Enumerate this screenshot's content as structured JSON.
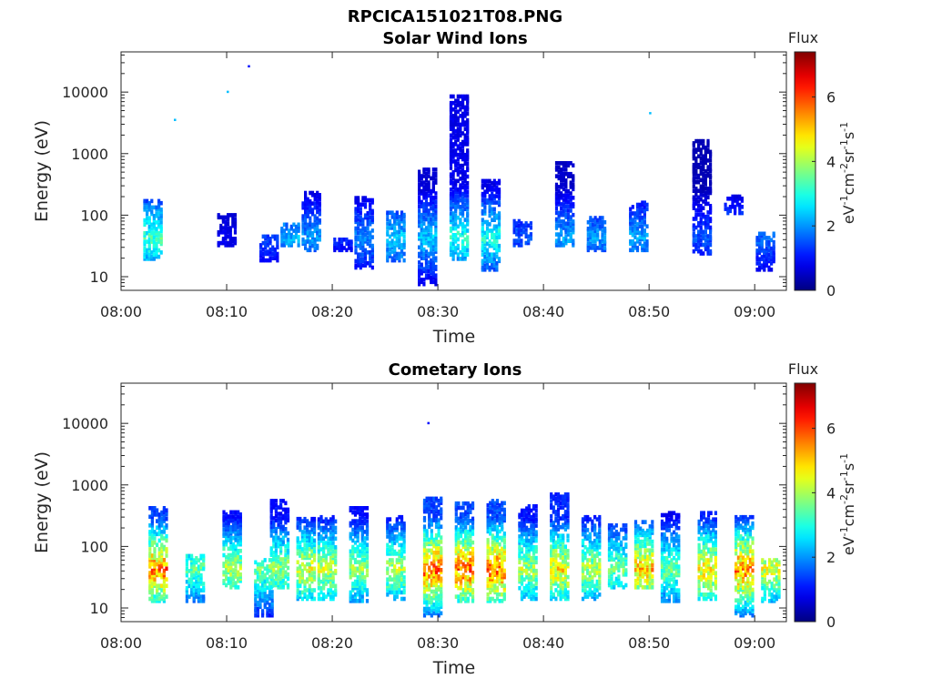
{
  "figure_title": "RPCICA151021T08.PNG",
  "chart_data": [
    {
      "type": "heatmap",
      "title": "Solar Wind Ions",
      "xlabel": "Time",
      "ylabel": "Energy (eV)",
      "x_range": [
        "08:00",
        "09:03"
      ],
      "y_scale": "log",
      "y_range": [
        6,
        45000
      ],
      "x_ticks": [
        "08:00",
        "08:10",
        "08:20",
        "08:30",
        "08:40",
        "08:50",
        "09:00"
      ],
      "y_ticks": [
        "10",
        "100",
        "1000",
        "10000"
      ],
      "colorbar": {
        "title": "Flux",
        "label": "eV-1cm-2sr-1s-1",
        "label_parts": [
          "eV",
          "-1",
          "cm",
          "-2",
          "sr",
          "-1",
          "s",
          "-1"
        ],
        "range": [
          0,
          7.4
        ],
        "ticks": [
          "0",
          "2",
          "4",
          "6"
        ],
        "colormap": "jet"
      },
      "clusters": [
        {
          "time": "08:03",
          "e_min": 18,
          "e_max": 170,
          "flux": 3.8
        },
        {
          "time": "08:05",
          "e_min": 3500,
          "e_max": 3500,
          "flux": 2.3
        },
        {
          "time": "08:10",
          "e_min": 30,
          "e_max": 100,
          "flux": 1.0
        },
        {
          "time": "08:10",
          "e_min": 10000,
          "e_max": 10000,
          "flux": 2.3
        },
        {
          "time": "08:12",
          "e_min": 26000,
          "e_max": 26000,
          "flux": 1.0
        },
        {
          "time": "08:14",
          "e_min": 17,
          "e_max": 45,
          "flux": 1.6
        },
        {
          "time": "08:16",
          "e_min": 30,
          "e_max": 70,
          "flux": 2.6
        },
        {
          "time": "08:18",
          "e_min": 25,
          "e_max": 230,
          "flux": 2.4
        },
        {
          "time": "08:21",
          "e_min": 25,
          "e_max": 40,
          "flux": 1.4
        },
        {
          "time": "08:23",
          "e_min": 13,
          "e_max": 190,
          "flux": 2.2
        },
        {
          "time": "08:26",
          "e_min": 17,
          "e_max": 110,
          "flux": 2.8
        },
        {
          "time": "08:29",
          "e_min": 7,
          "e_max": 550,
          "flux": 2.8
        },
        {
          "time": "08:32",
          "e_min": 18,
          "e_max": 8500,
          "flux": 3.6
        },
        {
          "time": "08:35",
          "e_min": 12,
          "e_max": 360,
          "flux": 3.5
        },
        {
          "time": "08:38",
          "e_min": 30,
          "e_max": 80,
          "flux": 1.8
        },
        {
          "time": "08:42",
          "e_min": 30,
          "e_max": 700,
          "flux": 2.5
        },
        {
          "time": "08:45",
          "e_min": 25,
          "e_max": 90,
          "flux": 2.4
        },
        {
          "time": "08:49",
          "e_min": 25,
          "e_max": 160,
          "flux": 2.5
        },
        {
          "time": "08:50",
          "e_min": 4500,
          "e_max": 4500,
          "flux": 2.3
        },
        {
          "time": "08:55",
          "e_min": 22,
          "e_max": 1600,
          "flux": 1.8
        },
        {
          "time": "08:58",
          "e_min": 100,
          "e_max": 200,
          "flux": 2.2
        },
        {
          "time": "09:01",
          "e_min": 12,
          "e_max": 50,
          "flux": 2.0
        }
      ]
    },
    {
      "type": "heatmap",
      "title": "Cometary Ions",
      "xlabel": "Time",
      "ylabel": "Energy (eV)",
      "x_range": [
        "08:00",
        "09:03"
      ],
      "y_scale": "log",
      "y_range": [
        6,
        45000
      ],
      "x_ticks": [
        "08:00",
        "08:10",
        "08:20",
        "08:30",
        "08:40",
        "08:50",
        "09:00"
      ],
      "y_ticks": [
        "10",
        "100",
        "1000",
        "10000"
      ],
      "colorbar": {
        "title": "Flux",
        "label": "eV-1cm-2sr-1s-1",
        "label_parts": [
          "eV",
          "-1",
          "cm",
          "-2",
          "sr",
          "-1",
          "s",
          "-1"
        ],
        "range": [
          0,
          7.4
        ],
        "ticks": [
          "0",
          "2",
          "4",
          "6"
        ],
        "colormap": "jet"
      },
      "clusters": [
        {
          "time": "08:03.5",
          "e_min": 12,
          "e_max": 420,
          "flux": 6.6
        },
        {
          "time": "08:07",
          "e_min": 12,
          "e_max": 70,
          "flux": 4.0
        },
        {
          "time": "08:10.5",
          "e_min": 20,
          "e_max": 360,
          "flux": 4.8
        },
        {
          "time": "08:13.5",
          "e_min": 7,
          "e_max": 60,
          "flux": 4.2
        },
        {
          "time": "08:15",
          "e_min": 20,
          "e_max": 550,
          "flux": 4.6
        },
        {
          "time": "08:17.5",
          "e_min": 13,
          "e_max": 280,
          "flux": 5.2
        },
        {
          "time": "08:19.5",
          "e_min": 13,
          "e_max": 300,
          "flux": 5.0
        },
        {
          "time": "08:22.5",
          "e_min": 12,
          "e_max": 420,
          "flux": 4.6
        },
        {
          "time": "08:26",
          "e_min": 13,
          "e_max": 300,
          "flux": 4.8
        },
        {
          "time": "08:29.5",
          "e_min": 7,
          "e_max": 600,
          "flux": 6.8
        },
        {
          "time": "08:29",
          "e_min": 10000,
          "e_max": 10000,
          "flux": 1.0
        },
        {
          "time": "08:32.5",
          "e_min": 12,
          "e_max": 500,
          "flux": 6.9
        },
        {
          "time": "08:35.5",
          "e_min": 12,
          "e_max": 550,
          "flux": 6.8
        },
        {
          "time": "08:38.5",
          "e_min": 13,
          "e_max": 450,
          "flux": 4.8
        },
        {
          "time": "08:41.5",
          "e_min": 13,
          "e_max": 700,
          "flux": 5.6
        },
        {
          "time": "08:44.5",
          "e_min": 13,
          "e_max": 300,
          "flux": 4.8
        },
        {
          "time": "08:47",
          "e_min": 20,
          "e_max": 220,
          "flux": 4.2
        },
        {
          "time": "08:49.5",
          "e_min": 20,
          "e_max": 250,
          "flux": 6.0
        },
        {
          "time": "08:52",
          "e_min": 12,
          "e_max": 350,
          "flux": 4.2
        },
        {
          "time": "08:55.5",
          "e_min": 13,
          "e_max": 350,
          "flux": 5.6
        },
        {
          "time": "08:59",
          "e_min": 7,
          "e_max": 300,
          "flux": 6.6
        },
        {
          "time": "09:01.5",
          "e_min": 12,
          "e_max": 60,
          "flux": 5.2
        }
      ]
    }
  ]
}
